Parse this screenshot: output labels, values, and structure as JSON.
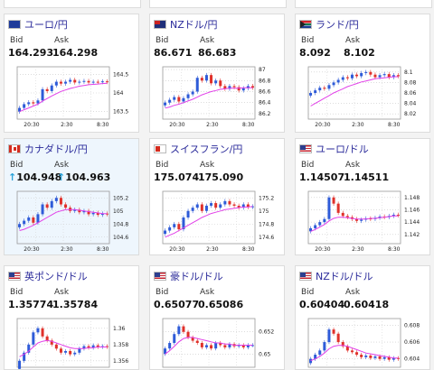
{
  "cards": [
    {
      "pair": "ユーロ/円",
      "flag": "eu",
      "bid": "164.293",
      "ask": "164.298",
      "arrow": "",
      "bid_label": "Bid",
      "ask_label": "Ask",
      "ticks": [
        "164.5",
        "164",
        "163.5"
      ],
      "tick_vals": [
        164.5,
        164.0,
        163.5
      ],
      "ymin": 163.3,
      "ymax": 164.7,
      "x_labels": [
        "20:30",
        "2:30",
        "8:30"
      ],
      "closes": [
        163.6,
        163.7,
        163.75,
        163.72,
        163.8,
        164.1,
        164.05,
        164.2,
        164.3,
        164.25,
        164.3,
        164.35,
        164.28,
        164.3,
        164.32,
        164.28,
        164.3,
        164.29,
        164.31,
        164.29
      ],
      "ma": [
        163.5,
        163.55,
        163.6,
        163.65,
        163.7,
        163.78,
        163.85,
        163.92,
        163.98,
        164.04,
        164.08,
        164.12,
        164.15,
        164.18,
        164.2,
        164.22,
        164.23,
        164.24,
        164.25,
        164.26
      ]
    },
    {
      "pair": "NZドル/円",
      "flag": "nz",
      "bid": "86.671",
      "ask": "86.683",
      "arrow": "",
      "bid_label": "Bid",
      "ask_label": "Ask",
      "ticks": [
        "87",
        "86.8",
        "86.6",
        "86.4",
        "86.2"
      ],
      "tick_vals": [
        87,
        86.8,
        86.6,
        86.4,
        86.2
      ],
      "ymin": 86.1,
      "ymax": 87.05,
      "x_labels": [
        "20:30",
        "2:30",
        "8:30"
      ],
      "closes": [
        86.4,
        86.45,
        86.5,
        86.42,
        86.48,
        86.55,
        86.6,
        86.85,
        86.8,
        86.9,
        86.75,
        86.8,
        86.7,
        86.65,
        86.7,
        86.68,
        86.62,
        86.66,
        86.7,
        86.67
      ],
      "ma": [
        86.3,
        86.32,
        86.35,
        86.37,
        86.4,
        86.43,
        86.46,
        86.5,
        86.54,
        86.57,
        86.6,
        86.62,
        86.64,
        86.65,
        86.66,
        86.66,
        86.66,
        86.67,
        86.67,
        86.67
      ]
    },
    {
      "pair": "ランド/円",
      "flag": "za",
      "bid": "8.092",
      "ask": "8.102",
      "arrow": "",
      "bid_label": "Bid",
      "ask_label": "Ask",
      "ticks": [
        "8.1",
        "8.08",
        "8.06",
        "8.04",
        "8.02"
      ],
      "tick_vals": [
        8.1,
        8.08,
        8.06,
        8.04,
        8.02
      ],
      "ymin": 8.01,
      "ymax": 8.11,
      "x_labels": [
        "20:30",
        "2:30",
        "8:30"
      ],
      "closes": [
        8.06,
        8.065,
        8.07,
        8.068,
        8.075,
        8.08,
        8.085,
        8.09,
        8.088,
        8.095,
        8.092,
        8.098,
        8.1,
        8.095,
        8.09,
        8.094,
        8.096,
        8.09,
        8.094,
        8.092
      ],
      "ma": [
        8.035,
        8.04,
        8.045,
        8.05,
        8.055,
        8.06,
        8.064,
        8.068,
        8.072,
        8.075,
        8.078,
        8.081,
        8.083,
        8.085,
        8.087,
        8.088,
        8.089,
        8.09,
        8.091,
        8.091
      ]
    },
    {
      "pair": "カナダドル/円",
      "flag": "ca",
      "bid": "104.948",
      "ask": "104.963",
      "arrow": "↑",
      "bid_label": "Bid",
      "ask_label": "Ask",
      "ticks": [
        "105.2",
        "105",
        "104.8",
        "104.6"
      ],
      "tick_vals": [
        105.2,
        105.0,
        104.8,
        104.6
      ],
      "ymin": 104.5,
      "ymax": 105.3,
      "x_labels": [
        "20:30",
        "2:30",
        "8:30"
      ],
      "closes": [
        104.8,
        104.85,
        104.9,
        104.82,
        104.95,
        105.1,
        105.05,
        105.15,
        105.2,
        105.1,
        105.05,
        105.0,
        105.02,
        104.98,
        105.0,
        104.95,
        104.97,
        104.94,
        104.96,
        104.95
      ],
      "ma": [
        104.7,
        104.72,
        104.75,
        104.78,
        104.82,
        104.86,
        104.9,
        104.94,
        104.98,
        105.0,
        105.02,
        105.02,
        105.02,
        105.01,
        105.0,
        104.99,
        104.98,
        104.97,
        104.96,
        104.96
      ]
    },
    {
      "pair": "スイスフラン/円",
      "flag": "ch",
      "bid": "175.074",
      "ask": "175.090",
      "arrow": "",
      "bid_label": "Bid",
      "ask_label": "Ask",
      "ticks": [
        "175.2",
        "175",
        "174.8",
        "174.6"
      ],
      "tick_vals": [
        175.2,
        175.0,
        174.8,
        174.6
      ],
      "ymin": 174.5,
      "ymax": 175.3,
      "x_labels": [
        "20:30",
        "2:30",
        "8:30"
      ],
      "closes": [
        174.7,
        174.75,
        174.8,
        174.72,
        174.9,
        175.0,
        175.05,
        175.1,
        175.0,
        175.08,
        175.12,
        175.05,
        175.1,
        175.15,
        175.1,
        175.08,
        175.05,
        175.1,
        175.06,
        175.07
      ],
      "ma": [
        174.6,
        174.63,
        174.66,
        174.7,
        174.74,
        174.78,
        174.82,
        174.86,
        174.9,
        174.93,
        174.96,
        174.98,
        175.0,
        175.02,
        175.03,
        175.04,
        175.05,
        175.06,
        175.06,
        175.07
      ]
    },
    {
      "pair": "ユーロ/ドル",
      "flag": "us",
      "bid": "1.14507",
      "ask": "1.14511",
      "arrow": "",
      "bid_label": "Bid",
      "ask_label": "Ask",
      "ticks": [
        "1.148",
        "1.146",
        "1.144",
        "1.142"
      ],
      "tick_vals": [
        1.148,
        1.146,
        1.144,
        1.142
      ],
      "ymin": 1.1405,
      "ymax": 1.149,
      "x_labels": [
        "20:30",
        "2:30",
        "8:30"
      ],
      "closes": [
        1.143,
        1.1435,
        1.144,
        1.1445,
        1.148,
        1.147,
        1.1455,
        1.145,
        1.1448,
        1.1445,
        1.1442,
        1.1444,
        1.1446,
        1.1445,
        1.1447,
        1.1449,
        1.1448,
        1.145,
        1.1452,
        1.1451
      ],
      "ma": [
        1.1425,
        1.1428,
        1.1432,
        1.1436,
        1.1442,
        1.1446,
        1.1448,
        1.1448,
        1.1447,
        1.1446,
        1.1445,
        1.1445,
        1.1445,
        1.1446,
        1.1446,
        1.1447,
        1.1448,
        1.1449,
        1.145,
        1.145
      ]
    },
    {
      "pair": "英ポンド/ドル",
      "flag": "us",
      "bid": "1.35774",
      "ask": "1.35784",
      "arrow": "",
      "bid_label": "Bid",
      "ask_label": "Ask",
      "ticks": [
        "1.36",
        "1.358",
        "1.356"
      ],
      "tick_vals": [
        1.36,
        1.358,
        1.356
      ],
      "ymin": 1.3552,
      "ymax": 1.3612,
      "x_labels": [],
      "closes": [
        1.356,
        1.357,
        1.358,
        1.3595,
        1.36,
        1.359,
        1.3585,
        1.358,
        1.3575,
        1.357,
        1.3572,
        1.3568,
        1.357,
        1.3575,
        1.3578,
        1.3576,
        1.3579,
        1.3577,
        1.3578,
        1.3577
      ],
      "ma": [
        1.3565,
        1.3568,
        1.3572,
        1.3577,
        1.3582,
        1.3584,
        1.3585,
        1.3584,
        1.3582,
        1.358,
        1.3578,
        1.3576,
        1.3575,
        1.3575,
        1.3575,
        1.3576,
        1.3576,
        1.3577,
        1.3577,
        1.3577
      ]
    },
    {
      "pair": "豪ドル/ドル",
      "flag": "us",
      "bid": "0.65077",
      "ask": "0.65086",
      "arrow": "",
      "bid_label": "Bid",
      "ask_label": "Ask",
      "ticks": [
        "0.652",
        "0.65"
      ],
      "tick_vals": [
        0.652,
        0.65
      ],
      "ymin": 0.6488,
      "ymax": 0.6532,
      "x_labels": [],
      "closes": [
        0.6505,
        0.651,
        0.6518,
        0.6525,
        0.652,
        0.6515,
        0.6512,
        0.651,
        0.6506,
        0.6508,
        0.6505,
        0.651,
        0.6508,
        0.6506,
        0.6509,
        0.6507,
        0.6508,
        0.6506,
        0.6508,
        0.6508
      ],
      "ma": [
        0.65,
        0.6503,
        0.6507,
        0.6511,
        0.6514,
        0.6515,
        0.6515,
        0.6514,
        0.6513,
        0.6512,
        0.6511,
        0.651,
        0.651,
        0.6509,
        0.6509,
        0.6508,
        0.6508,
        0.6508,
        0.6508,
        0.6508
      ]
    },
    {
      "pair": "NZドル/ドル",
      "flag": "us",
      "bid": "0.60404",
      "ask": "0.60418",
      "arrow": "",
      "bid_label": "Bid",
      "ask_label": "Ask",
      "ticks": [
        "0.608",
        "0.606",
        "0.604"
      ],
      "tick_vals": [
        0.608,
        0.606,
        0.604
      ],
      "ymin": 0.603,
      "ymax": 0.6088,
      "x_labels": [],
      "closes": [
        0.604,
        0.6045,
        0.605,
        0.606,
        0.6075,
        0.607,
        0.606,
        0.6055,
        0.605,
        0.6048,
        0.6045,
        0.6042,
        0.6044,
        0.6041,
        0.6043,
        0.604,
        0.6042,
        0.6039,
        0.6041,
        0.604
      ],
      "ma": [
        0.6038,
        0.604,
        0.6043,
        0.6047,
        0.6052,
        0.6055,
        0.6056,
        0.6056,
        0.6055,
        0.6053,
        0.6051,
        0.6049,
        0.6047,
        0.6046,
        0.6045,
        0.6044,
        0.6043,
        0.6042,
        0.6041,
        0.6041
      ]
    }
  ],
  "colors": {
    "up": "#2e5bd8",
    "down": "#e0302a",
    "ma": "#e13fe8",
    "link": "#2a2a9a",
    "highlight": "#eef6fd"
  }
}
